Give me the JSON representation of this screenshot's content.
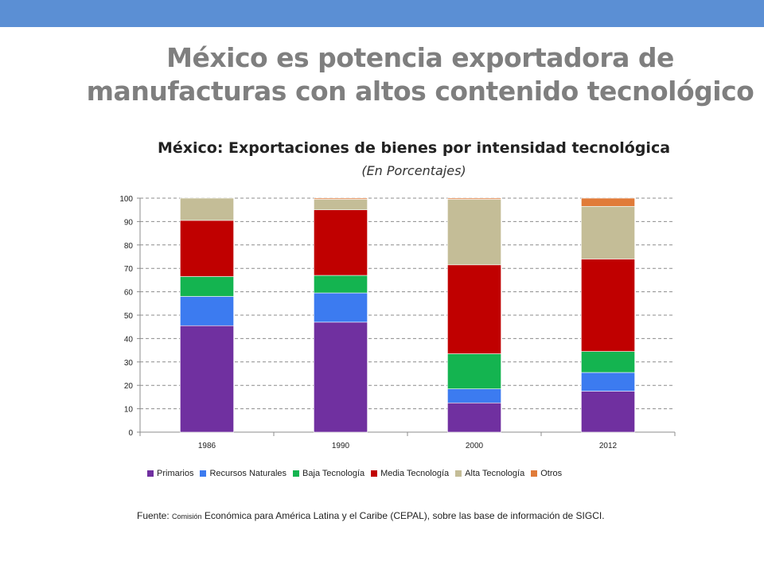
{
  "slide": {
    "title_line1": "México es potencia exportadora de",
    "title_line2": "manufacturas con altos contenido tecnológico",
    "bar_color": "#5b8fd4"
  },
  "source": {
    "prefix": "Fuente: ",
    "small": "Comisión",
    "rest": " Económica para América Latina y el Caribe (CEPAL), sobre las base de información de SIGCI."
  },
  "chart_data": {
    "type": "bar",
    "stacked": true,
    "title": "México: Exportaciones de bienes por intensidad tecnológica",
    "subtitle": "(En Porcentajes)",
    "categories": [
      "1986",
      "1990",
      "2000",
      "2012"
    ],
    "ylim": [
      0,
      100
    ],
    "yticks": [
      "0",
      "10",
      "20",
      "30",
      "40",
      "50",
      "60",
      "70",
      "80",
      "90",
      "100"
    ],
    "grid": true,
    "legend_position": "bottom",
    "series": [
      {
        "name": "Primarios",
        "color": "#7030a0",
        "values": [
          45.5,
          47,
          12.5,
          17.5
        ]
      },
      {
        "name": "Recursos Naturales",
        "color": "#3c7bf0",
        "values": [
          12.5,
          12.5,
          6,
          8
        ]
      },
      {
        "name": "Baja Tecnología",
        "color": "#14b450",
        "values": [
          8.5,
          7.5,
          15,
          9
        ]
      },
      {
        "name": "Media Tecnología",
        "color": "#c00000",
        "values": [
          24,
          28,
          38,
          39.5
        ]
      },
      {
        "name": "Alta Tecnología",
        "color": "#c4bd97",
        "values": [
          9.5,
          4.5,
          28,
          22.5
        ]
      },
      {
        "name": "Otros",
        "color": "#e07b39",
        "values": [
          0,
          0.5,
          0.5,
          3.5
        ]
      }
    ]
  }
}
